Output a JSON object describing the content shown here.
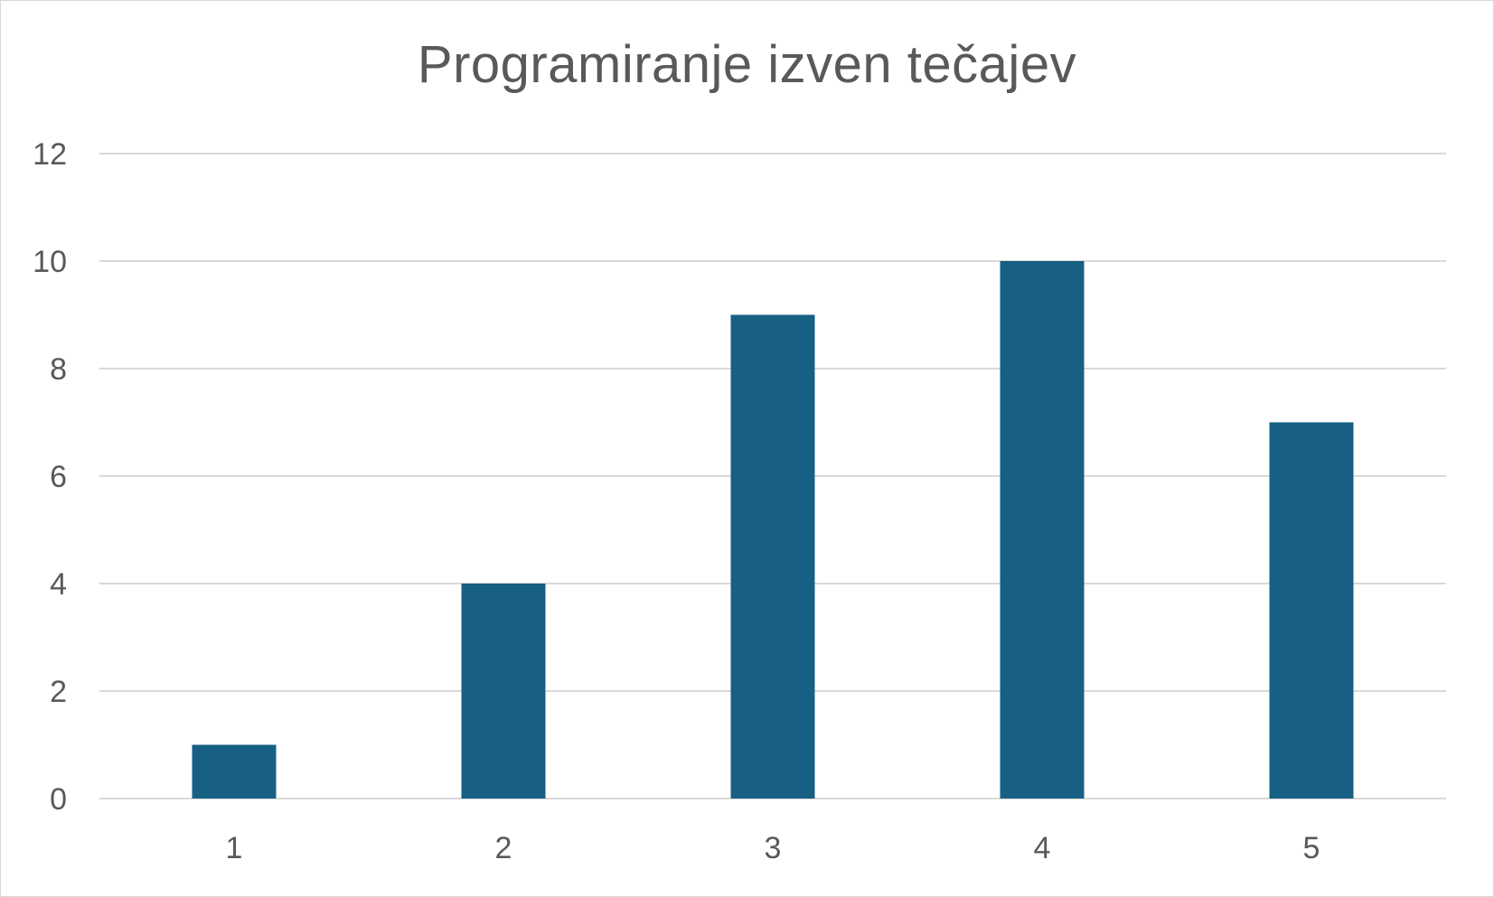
{
  "chart_data": {
    "type": "bar",
    "title": "Programiranje izven tečajev",
    "categories": [
      "1",
      "2",
      "3",
      "4",
      "5"
    ],
    "values": [
      1,
      4,
      9,
      10,
      7
    ],
    "ylim": [
      0,
      12
    ],
    "yticks": [
      "0",
      "2",
      "4",
      "6",
      "8",
      "10",
      "12"
    ],
    "grid": true,
    "legend": "none",
    "colors": {
      "bar": "#176084",
      "grid": "#d9d9d9",
      "text": "#595959"
    }
  }
}
